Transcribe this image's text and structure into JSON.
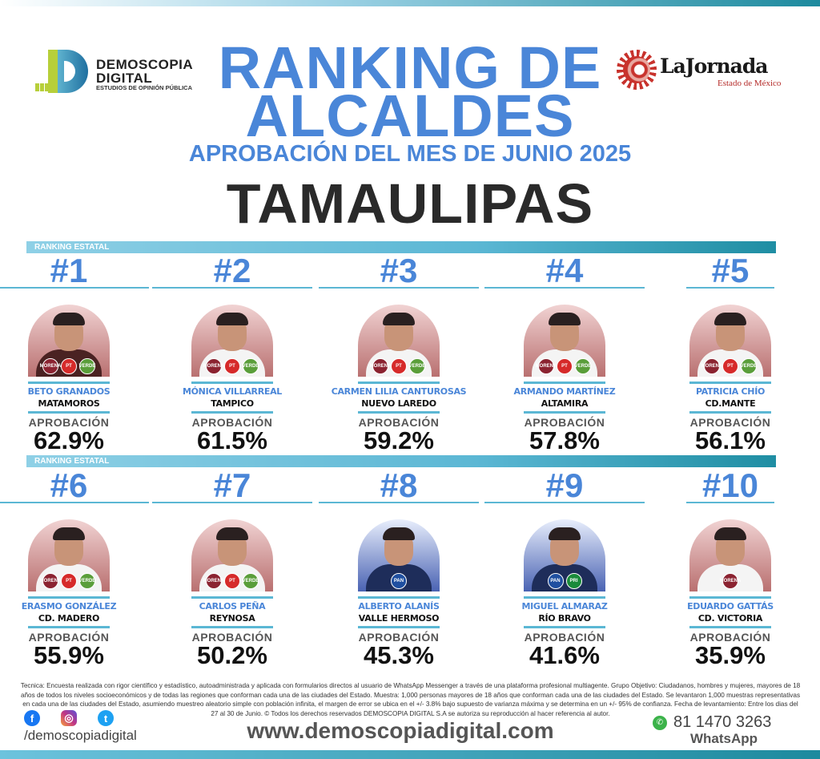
{
  "brand": {
    "name_line1": "DEMOSCOPIA",
    "name_line2": "DIGITAL",
    "tagline": "ESTUDIOS DE OPINIÓN PÚBLICA"
  },
  "partner": {
    "name": "LaJornada",
    "subtitle": "Estado de México"
  },
  "title": {
    "line1": "RANKING DE",
    "line2": "ALCALDES",
    "subtitle": "APROBACIÓN DEL MES DE JUNIO 2025",
    "state": "TAMAULIPAS"
  },
  "section_label": "RANKING ESTATAL",
  "approval_label": "APROBACIÓN",
  "colors": {
    "accent": "#4a86d8",
    "teal": "#5bb7d4",
    "morena": "#8b2331",
    "pt": "#d62a2a",
    "verde": "#5a9e3a",
    "pan": "#1f4fa0",
    "pri": "#1a8a3a"
  },
  "mayors": [
    {
      "rank": "#1",
      "name": "BETO GRANADOS",
      "city": "MATAMOROS",
      "approval": "62.9%",
      "approval_value": 62.9,
      "parties": [
        "MORENA",
        "PT",
        "VERDE"
      ]
    },
    {
      "rank": "#2",
      "name": "MÓNICA VILLARREAL",
      "city": "TAMPICO",
      "approval": "61.5%",
      "approval_value": 61.5,
      "parties": [
        "MORENA",
        "PT",
        "VERDE"
      ]
    },
    {
      "rank": "#3",
      "name": "CARMEN LILIA CANTUROSAS",
      "city": "NUEVO LAREDO",
      "approval": "59.2%",
      "approval_value": 59.2,
      "parties": [
        "MORENA",
        "PT",
        "VERDE"
      ]
    },
    {
      "rank": "#4",
      "name": "ARMANDO MARTÍNEZ",
      "city": "ALTAMIRA",
      "approval": "57.8%",
      "approval_value": 57.8,
      "parties": [
        "MORENA",
        "PT",
        "VERDE"
      ]
    },
    {
      "rank": "#5",
      "name": "PATRICIA CHÍO",
      "city": "CD.MANTE",
      "approval": "56.1%",
      "approval_value": 56.1,
      "parties": [
        "MORENA",
        "PT",
        "VERDE"
      ]
    },
    {
      "rank": "#6",
      "name": "ERASMO GONZÁLEZ",
      "city": "CD. MADERO",
      "approval": "55.9%",
      "approval_value": 55.9,
      "parties": [
        "MORENA",
        "PT",
        "VERDE"
      ]
    },
    {
      "rank": "#7",
      "name": "CARLOS PEÑA",
      "city": "REYNOSA",
      "approval": "50.2%",
      "approval_value": 50.2,
      "parties": [
        "MORENA",
        "PT",
        "VERDE"
      ]
    },
    {
      "rank": "#8",
      "name": "ALBERTO ALANÍS",
      "city": "VALLE HERMOSO",
      "approval": "45.3%",
      "approval_value": 45.3,
      "parties": [
        "PAN"
      ]
    },
    {
      "rank": "#9",
      "name": "MIGUEL ALMARAZ",
      "city": "RÍO BRAVO",
      "approval": "41.6%",
      "approval_value": 41.6,
      "parties": [
        "PAN",
        "PRI"
      ]
    },
    {
      "rank": "#10",
      "name": "EDUARDO GATTÁS",
      "city": "CD. VICTORIA",
      "approval": "35.9%",
      "approval_value": 35.9,
      "parties": [
        "MORENA"
      ]
    }
  ],
  "methodology": "Tecnica: Encuesta realizada con rigor científico y estadístico, autoadministrada y aplicada con formularios directos al usuario de WhatsApp Messenger a través de una plataforma profesional multiagente. Grupo Objetivo: Ciudadanos, hombres y mujeres, mayores de 18 años de todos los niveles socioeconómicos y de todas las regiones que conforman cada una de las ciudades del Estado. Muestra: 1,000 personas mayores de 18 años que conforman cada una de las ciudades del Estado. Se levantaron 1,000 muestras representativas en cada una de las ciudades del Estado, asumiendo muestreo aleatorio simple con población infinita, el margen de error se ubica en el +/- 3.8% bajo supuesto de varianza máxima y se determina en un +/- 95% de confianza. Fecha de levantamiento: Entre los dias del 27 al 30 de Junio. © Todos los derechos reservados DEMOSCOPIA DIGITAL S.A se autoriza su reproducción al hacer referencia al autor.",
  "footer": {
    "social_handle": "/demoscopiadigital",
    "website": "www.demoscopiadigital.com",
    "phone": "81 1470 3263",
    "phone_label": "WhatsApp",
    "icons": [
      "facebook-icon",
      "instagram-icon",
      "twitter-icon",
      "whatsapp-icon"
    ]
  }
}
